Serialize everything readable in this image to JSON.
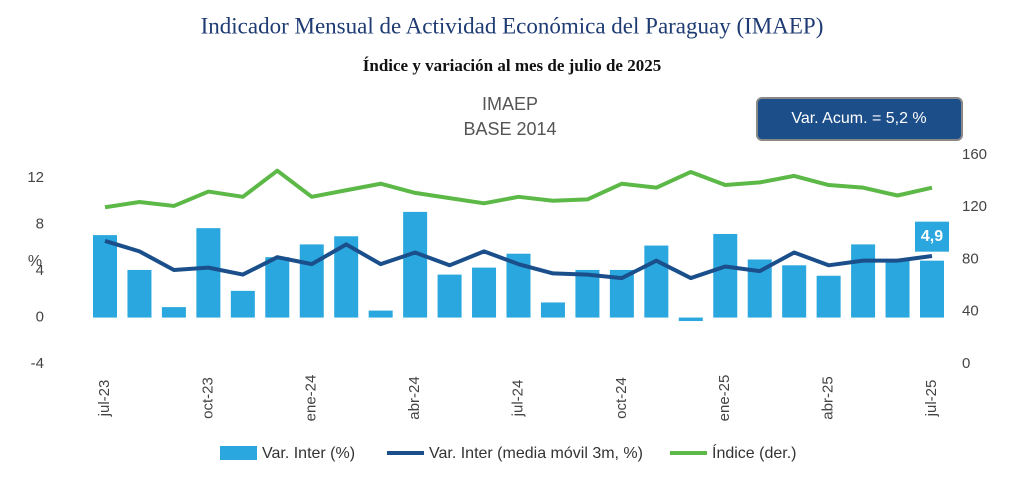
{
  "chart_data": {
    "type": "bar",
    "title": "Indicador Mensual de Actividad Económica del Paraguay (IMAEP)",
    "subtitle": "Índice y variación al mes de julio de 2025",
    "chart_title": [
      "IMAEP",
      "BASE 2014"
    ],
    "annotation": "Var. Acum. =  5,2 %",
    "ylabel": "%",
    "categories": [
      "jul-23",
      null,
      null,
      "oct-23",
      null,
      null,
      "ene-24",
      null,
      null,
      "abr-24",
      null,
      null,
      "jul-24",
      null,
      null,
      "oct-24",
      null,
      null,
      "ene-25",
      null,
      null,
      "abr-25",
      null,
      null,
      "jul-25"
    ],
    "ylim": [
      -4,
      14
    ],
    "yticks": [
      -4,
      0,
      4,
      8,
      12
    ],
    "y2lim": [
      0,
      160
    ],
    "y2ticks": [
      0,
      40,
      80,
      120,
      160
    ],
    "legend": "bottom",
    "series": [
      {
        "name": "Var. Inter (%)",
        "type": "bar",
        "color": "#2aa7de",
        "values": [
          7.1,
          4.1,
          0.9,
          7.7,
          2.3,
          5.2,
          6.3,
          7.0,
          0.6,
          9.1,
          3.7,
          4.3,
          5.5,
          1.3,
          4.1,
          4.1,
          6.2,
          -0.3,
          7.2,
          5.0,
          4.5,
          3.6,
          6.3,
          5.0,
          4.9
        ],
        "value_labels": [
          null,
          null,
          null,
          null,
          null,
          null,
          null,
          null,
          null,
          null,
          null,
          null,
          null,
          null,
          null,
          null,
          null,
          null,
          null,
          null,
          null,
          null,
          null,
          null,
          "4,9"
        ]
      },
      {
        "name": "Var. Inter (media móvil 3m, %)",
        "type": "line",
        "color": "#1a4f8b",
        "values": [
          6.6,
          5.7,
          4.1,
          4.3,
          3.7,
          5.2,
          4.6,
          6.3,
          4.6,
          5.6,
          4.5,
          5.7,
          4.6,
          3.8,
          3.7,
          3.4,
          4.9,
          3.4,
          4.4,
          4.0,
          5.6,
          4.5,
          4.9,
          4.9,
          5.3
        ]
      },
      {
        "name": "Índice (der.)",
        "type": "line",
        "axis": "y2",
        "color": "#5cb947",
        "values": [
          120,
          124,
          121,
          132,
          128,
          148,
          128,
          133,
          138,
          131,
          127,
          123,
          128,
          125,
          126,
          138,
          135,
          147,
          137,
          139,
          144,
          137,
          135,
          129,
          135
        ]
      }
    ]
  }
}
